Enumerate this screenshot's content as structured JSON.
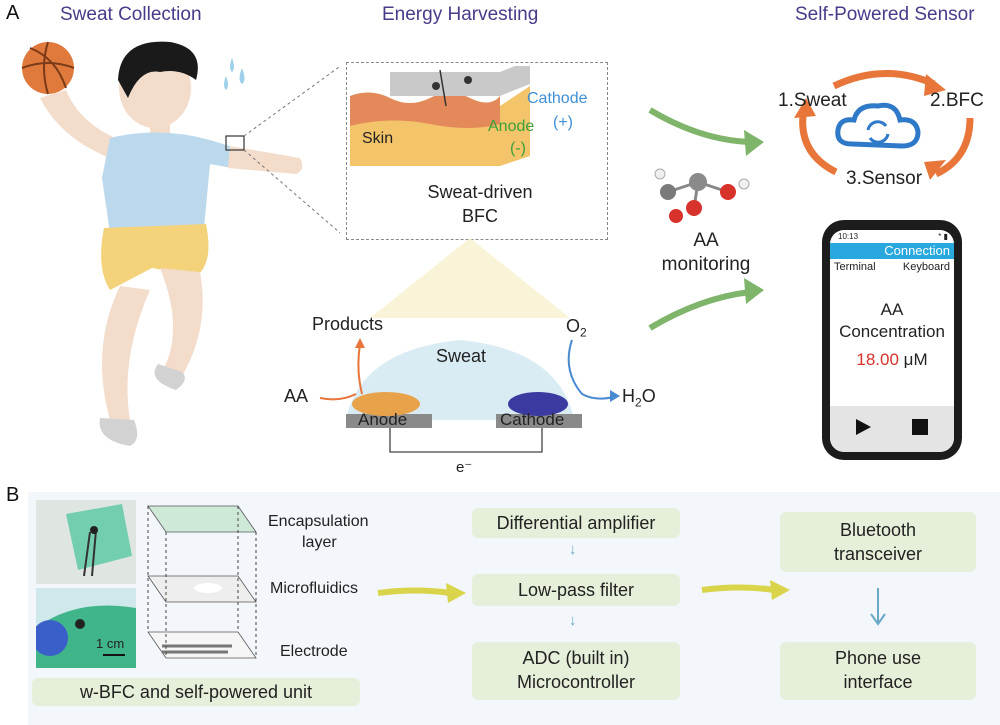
{
  "panel_a": {
    "letter": "A",
    "titles": {
      "sweat_collection": "Sweat Collection",
      "energy_harvesting": "Energy Harvesting",
      "self_powered_sensor": "Self-Powered Sensor"
    },
    "inset": {
      "cathode": "Cathode",
      "cathode_sign": "(+)",
      "anode": "Anode",
      "anode_sign": "(-)",
      "skin": "Skin",
      "caption_line1": "Sweat-driven",
      "caption_line2": "BFC"
    },
    "reaction": {
      "products": "Products",
      "sweat": "Sweat",
      "aa": "AA",
      "o2": "O",
      "o2_sub": "2",
      "h2o_h": "H",
      "h2o_sub": "2",
      "h2o_o": "O",
      "anode": "Anode",
      "cathode": "Cathode",
      "electron": "e⁻"
    },
    "monitoring": {
      "line1": "AA",
      "line2": "monitoring"
    },
    "cycle": {
      "step1": "1.Sweat",
      "step2": "2.BFC",
      "step3": "3.Sensor"
    },
    "phone": {
      "time": "10:13",
      "status_icons": "* ▮",
      "header": "Connection",
      "tab_terminal": "Terminal",
      "tab_keyboard": "Keyboard",
      "label_line1": "AA",
      "label_line2": "Concentration",
      "value": "18.00",
      "unit": "μM"
    }
  },
  "panel_b": {
    "letter": "B",
    "layers": {
      "encapsulation_line1": "Encapsulation",
      "encapsulation_line2": "layer",
      "microfluidics": "Microfluidics",
      "electrode": "Electrode"
    },
    "scale_bar": "1 cm",
    "unit_label": "w-BFC and self-powered unit",
    "chain": {
      "amplifier": "Differential amplifier",
      "filter": "Low-pass filter",
      "adc_line1": "ADC (built in)",
      "adc_line2": "Microcontroller"
    },
    "output": {
      "bluetooth_line1": "Bluetooth",
      "bluetooth_line2": "transceiver",
      "phone_line1": "Phone use",
      "phone_line2": "interface"
    }
  },
  "colors": {
    "title": "#4a3a8a",
    "green_arrow": "#7fb56a",
    "yellow_arrow": "#d9d44a",
    "orange_arrow": "#e8763a",
    "cathode_text": "#3f8fd6",
    "anode_text": "#3aa23a",
    "value_red": "#d9312b",
    "phone_header": "#29a8e0",
    "box_green": "#e6efd9",
    "panel_b_bg": "#f3f6fb"
  }
}
